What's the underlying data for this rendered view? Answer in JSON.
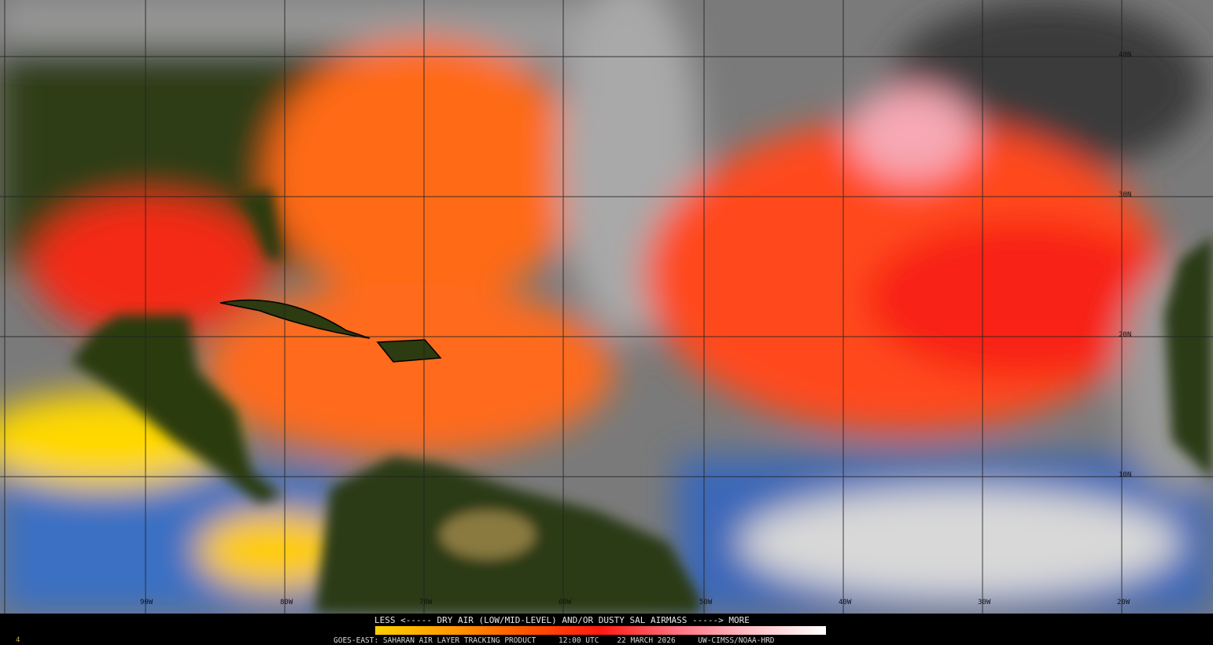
{
  "product": {
    "legend_title": "LESS <----- DRY AIR (LOW/MID-LEVEL) AND/OR DUSTY SAL AIRMASS -----> MORE",
    "footer": "GOES-EAST: SAHARAN AIR LAYER TRACKING PRODUCT     12:00 UTC    22 MARCH 2026     UW-CIMSS/NOAA-HRD",
    "corner_mark": "4",
    "colorbar_colors": [
      "#ffd000",
      "#ff9a00",
      "#ff5500",
      "#ff1a10",
      "#ff7080",
      "#ffc0c8",
      "#ffffff"
    ]
  },
  "grid": {
    "longitude_labels": [
      "90W",
      "80W",
      "70W",
      "60W",
      "50W",
      "40W",
      "30W",
      "20W"
    ],
    "latitude_labels": [
      "40N",
      "30N",
      "20N",
      "10N"
    ]
  }
}
